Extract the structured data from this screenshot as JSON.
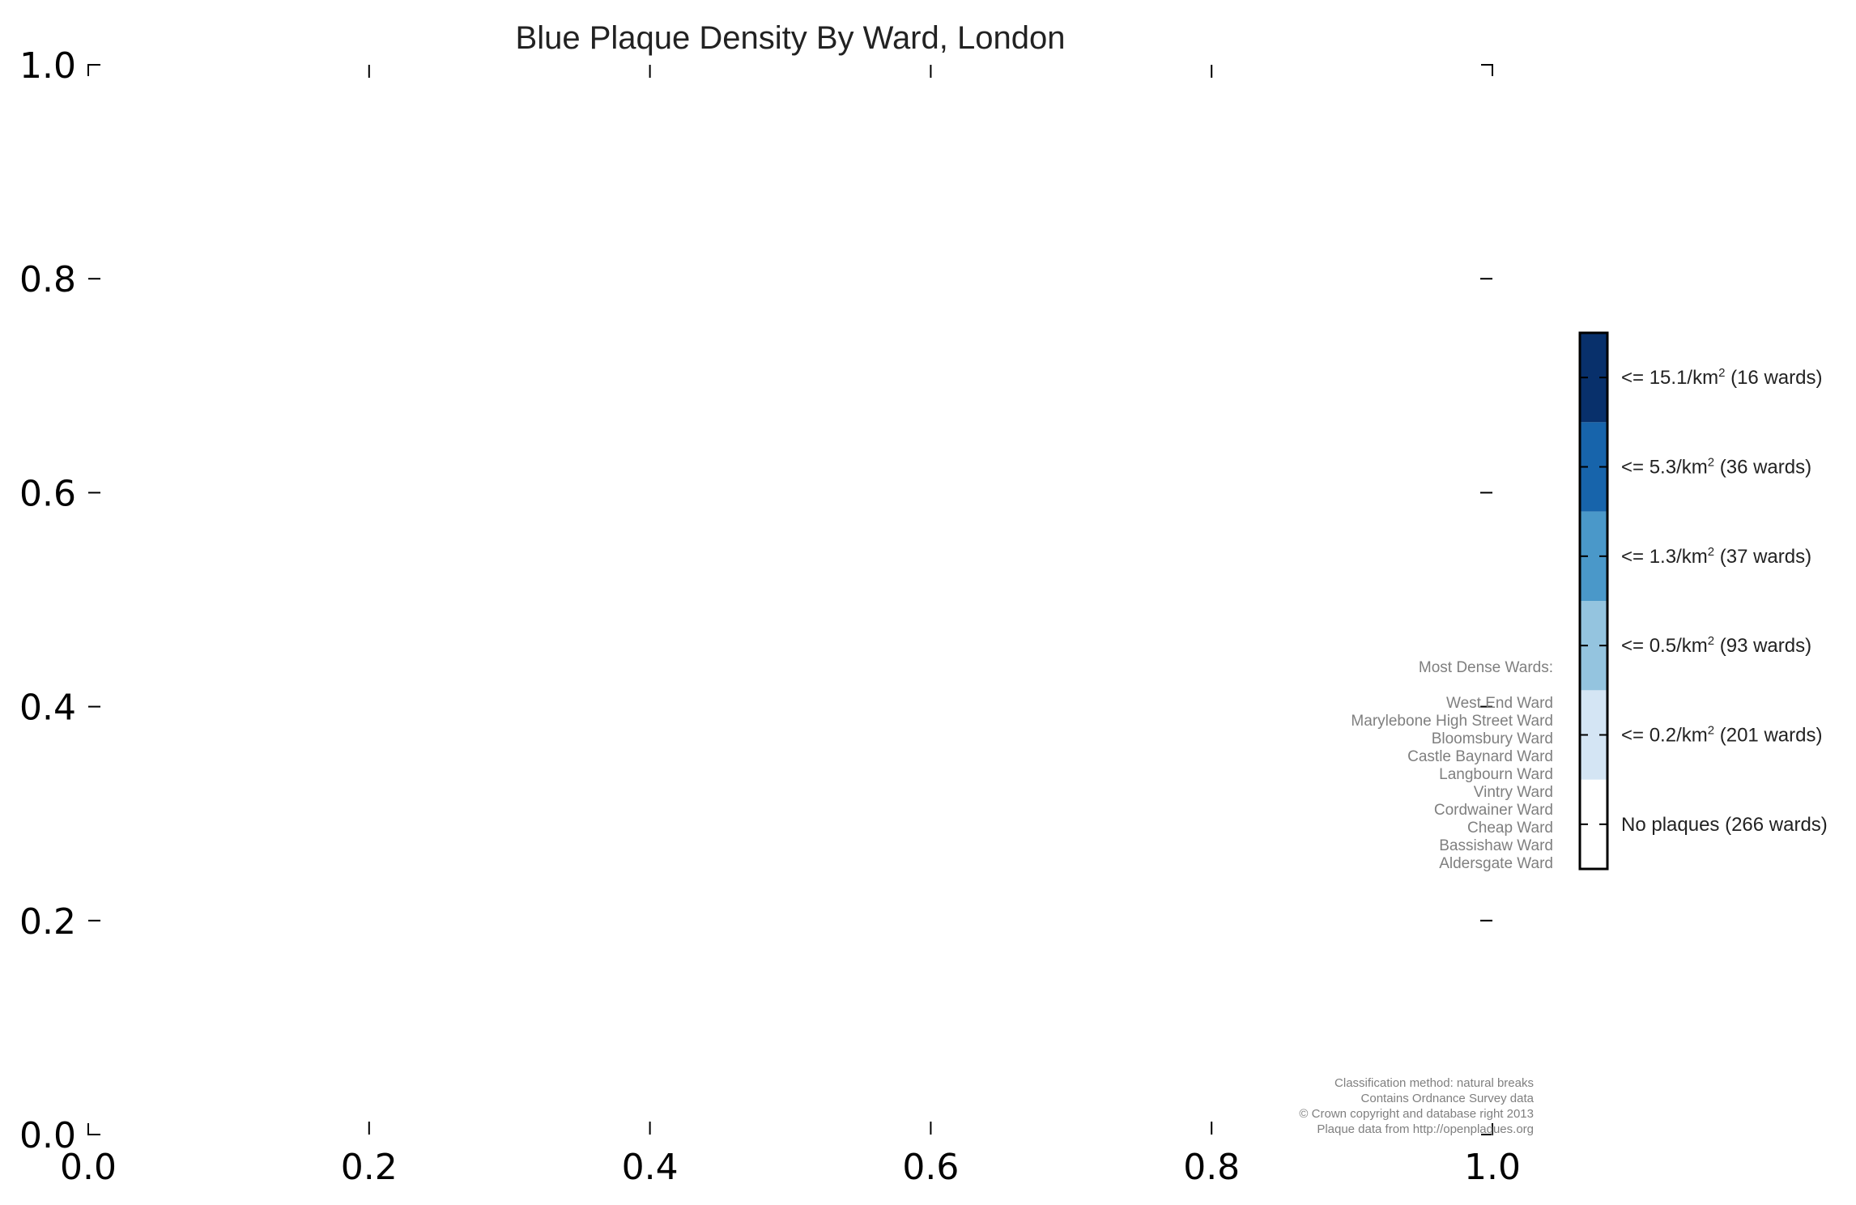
{
  "chart_data": {
    "type": "heatmap",
    "title": "Blue Plaque Density By Ward, London",
    "xlim": [
      0.0,
      1.0
    ],
    "ylim": [
      0.0,
      1.0
    ],
    "x_ticks": [
      "0.0",
      "0.2",
      "0.4",
      "0.6",
      "0.8",
      "1.0"
    ],
    "y_ticks": [
      "0.0",
      "0.2",
      "0.4",
      "0.6",
      "0.8",
      "1.0"
    ],
    "x_tick_values": [
      0.0,
      0.2,
      0.4,
      0.6,
      0.8,
      1.0
    ],
    "y_tick_values": [
      0.0,
      0.2,
      0.4,
      0.6,
      0.8,
      1.0
    ],
    "grid": false,
    "colorbar": {
      "placement": "right",
      "classes": [
        {
          "label": "No plaques (266 wards)",
          "prefix": "No plaques (266 wards)",
          "superscript": "",
          "suffix": "",
          "color": "#ffffff"
        },
        {
          "label": "<= 0.2/km2 (201 wards)",
          "prefix": "<= 0.2/km",
          "superscript": "2",
          "suffix": " (201 wards)",
          "color": "#d4e5f4"
        },
        {
          "label": "<= 0.5/km2 (93 wards)",
          "prefix": "<= 0.5/km",
          "superscript": "2",
          "suffix": " (93 wards)",
          "color": "#94c4df"
        },
        {
          "label": "<= 1.3/km2 (37 wards)",
          "prefix": "<= 1.3/km",
          "superscript": "2",
          "suffix": " (37 wards)",
          "color": "#4a98c9"
        },
        {
          "label": "<= 5.3/km2 (36 wards)",
          "prefix": "<= 5.3/km",
          "superscript": "2",
          "suffix": " (36 wards)",
          "color": "#1764ab"
        },
        {
          "label": "<= 15.1/km2 (16 wards)",
          "prefix": "<= 15.1/km",
          "superscript": "2",
          "suffix": " (16 wards)",
          "color": "#08306b"
        }
      ]
    },
    "annotations": {
      "most_dense_heading": "Most Dense Wards:",
      "most_dense_wards": [
        "West End Ward",
        "Marylebone High Street Ward",
        "Bloomsbury Ward",
        "Castle Baynard Ward",
        "Langbourn Ward",
        "Vintry Ward",
        "Cordwainer Ward",
        "Cheap Ward",
        "Bassishaw Ward",
        "Aldersgate Ward"
      ],
      "credits": [
        "Classification method: natural breaks",
        "Contains Ordnance Survey data",
        "© Crown copyright and database right 2013",
        "Plaque data from http://openplaques.org"
      ]
    }
  }
}
